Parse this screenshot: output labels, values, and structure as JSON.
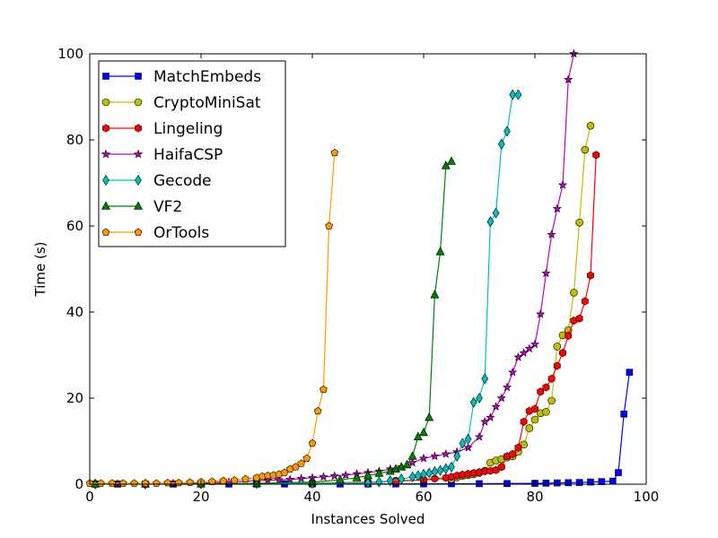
{
  "chart_data": {
    "type": "line",
    "title": "",
    "xlabel": "Instances Solved",
    "ylabel": "Time (s)",
    "xlim": [
      0,
      100
    ],
    "ylim": [
      0,
      100
    ],
    "xticks": [
      0,
      20,
      40,
      60,
      80,
      100
    ],
    "yticks": [
      0,
      20,
      40,
      60,
      80,
      100
    ],
    "grid": false,
    "legend_position": "top-left",
    "series": [
      {
        "name": "MatchEmbeds",
        "color": "#0000ff",
        "marker": "square",
        "x": [
          1,
          5,
          10,
          15,
          20,
          25,
          30,
          35,
          40,
          45,
          50,
          55,
          60,
          65,
          70,
          75,
          80,
          82,
          84,
          86,
          88,
          90,
          92,
          94,
          95,
          96,
          97
        ],
        "y": [
          0.02,
          0.02,
          0.02,
          0.03,
          0.03,
          0.04,
          0.04,
          0.05,
          0.05,
          0.05,
          0.06,
          0.06,
          0.08,
          0.1,
          0.12,
          0.15,
          0.2,
          0.25,
          0.3,
          0.35,
          0.4,
          0.5,
          0.6,
          0.7,
          2.7,
          16.3,
          26.0
        ]
      },
      {
        "name": "CryptoMiniSat",
        "color": "#bfbf00",
        "marker": "circle",
        "x": [
          1,
          10,
          20,
          30,
          40,
          50,
          55,
          60,
          65,
          66,
          67,
          68,
          69,
          70,
          71,
          72,
          73,
          74,
          75,
          76,
          77,
          78,
          79,
          80,
          81,
          82,
          83,
          84,
          85,
          86,
          87,
          88,
          89,
          90
        ],
        "y": [
          0.05,
          0.05,
          0.1,
          0.2,
          0.3,
          0.5,
          0.8,
          1.0,
          1.2,
          1.6,
          1.9,
          2.1,
          2.3,
          2.6,
          3.1,
          5.0,
          5.5,
          5.8,
          6.2,
          6.5,
          7.5,
          9.2,
          13.0,
          15.0,
          16.5,
          16.8,
          19.4,
          32.0,
          34.6,
          35.8,
          44.5,
          60.8,
          77.7,
          83.3
        ]
      },
      {
        "name": "Lingeling",
        "color": "#ff0000",
        "marker": "hexagon",
        "x": [
          1,
          10,
          20,
          30,
          40,
          50,
          55,
          60,
          62,
          64,
          65,
          66,
          67,
          68,
          69,
          70,
          71,
          72,
          73,
          74,
          75,
          76,
          77,
          78,
          79,
          80,
          81,
          82,
          83,
          84,
          85,
          86,
          87,
          88,
          89,
          90,
          91
        ],
        "y": [
          0.05,
          0.05,
          0.1,
          0.15,
          0.2,
          0.4,
          0.7,
          1.0,
          1.3,
          1.5,
          1.7,
          2.0,
          2.2,
          2.4,
          2.6,
          2.8,
          3.0,
          3.1,
          3.3,
          4.0,
          6.5,
          7.0,
          8.5,
          14.5,
          17.0,
          17.5,
          21.5,
          22.5,
          24.5,
          27.5,
          30.5,
          34.5,
          38.0,
          38.5,
          42.5,
          48.5,
          76.5
        ]
      },
      {
        "name": "HaifaCSP",
        "color": "#bf00bf",
        "marker": "star",
        "x": [
          1,
          5,
          10,
          15,
          20,
          25,
          30,
          32,
          34,
          36,
          38,
          40,
          42,
          44,
          46,
          48,
          50,
          52,
          54,
          56,
          58,
          60,
          62,
          64,
          66,
          68,
          70,
          71,
          72,
          73,
          74,
          75,
          76,
          77,
          78,
          79,
          80,
          81,
          82,
          83,
          84,
          85,
          86,
          87
        ],
        "y": [
          0.1,
          0.1,
          0.15,
          0.2,
          0.3,
          0.5,
          0.8,
          0.9,
          1.0,
          1.1,
          1.3,
          1.5,
          1.7,
          1.9,
          2.1,
          2.4,
          2.7,
          3.0,
          3.5,
          4.0,
          5.0,
          6.0,
          6.5,
          7.0,
          7.5,
          8.5,
          11.0,
          14.5,
          15.5,
          18.0,
          20.0,
          22.5,
          26.0,
          29.5,
          30.5,
          31.5,
          32.5,
          39.5,
          49.0,
          58.0,
          64.0,
          69.5,
          94.0,
          100.0
        ]
      },
      {
        "name": "Gecode",
        "color": "#00bfbf",
        "marker": "diamond",
        "x": [
          1,
          10,
          20,
          30,
          40,
          50,
          52,
          54,
          56,
          58,
          59,
          60,
          61,
          62,
          63,
          64,
          65,
          66,
          67,
          68,
          69,
          70,
          71,
          72,
          73,
          74,
          75,
          76,
          77
        ],
        "y": [
          0.05,
          0.05,
          0.1,
          0.15,
          0.2,
          0.3,
          0.5,
          0.8,
          1.2,
          1.7,
          2.0,
          2.3,
          2.6,
          2.9,
          3.2,
          3.6,
          4.0,
          6.5,
          9.5,
          10.5,
          19.0,
          20.0,
          24.5,
          61.0,
          63.0,
          79.0,
          82.0,
          90.5,
          90.5
        ]
      },
      {
        "name": "VF2",
        "color": "#007f00",
        "marker": "triangle",
        "x": [
          1,
          10,
          20,
          30,
          40,
          45,
          48,
          50,
          52,
          54,
          55,
          56,
          57,
          58,
          59,
          60,
          61,
          62,
          63,
          64,
          65
        ],
        "y": [
          0.05,
          0.05,
          0.1,
          0.2,
          0.5,
          1.0,
          1.5,
          2.0,
          2.5,
          3.0,
          3.5,
          4.0,
          4.5,
          6.5,
          11.0,
          12.0,
          15.5,
          44.0,
          54.0,
          74.0,
          75.0
        ]
      },
      {
        "name": "OrTools",
        "color": "#ff9900",
        "marker": "pentagon",
        "x": [
          0,
          2,
          4,
          6,
          8,
          10,
          12,
          14,
          16,
          18,
          20,
          22,
          24,
          26,
          28,
          30,
          31,
          32,
          33,
          34,
          35,
          36,
          37,
          38,
          39,
          40,
          41,
          42,
          43,
          44
        ],
        "y": [
          0.2,
          0.2,
          0.2,
          0.2,
          0.2,
          0.2,
          0.2,
          0.3,
          0.3,
          0.4,
          0.5,
          0.6,
          0.8,
          0.9,
          1.2,
          1.5,
          1.8,
          2.0,
          2.1,
          2.3,
          2.7,
          3.5,
          4.0,
          4.8,
          6.0,
          9.5,
          17.0,
          22.0,
          60.0,
          77.0
        ]
      }
    ]
  }
}
